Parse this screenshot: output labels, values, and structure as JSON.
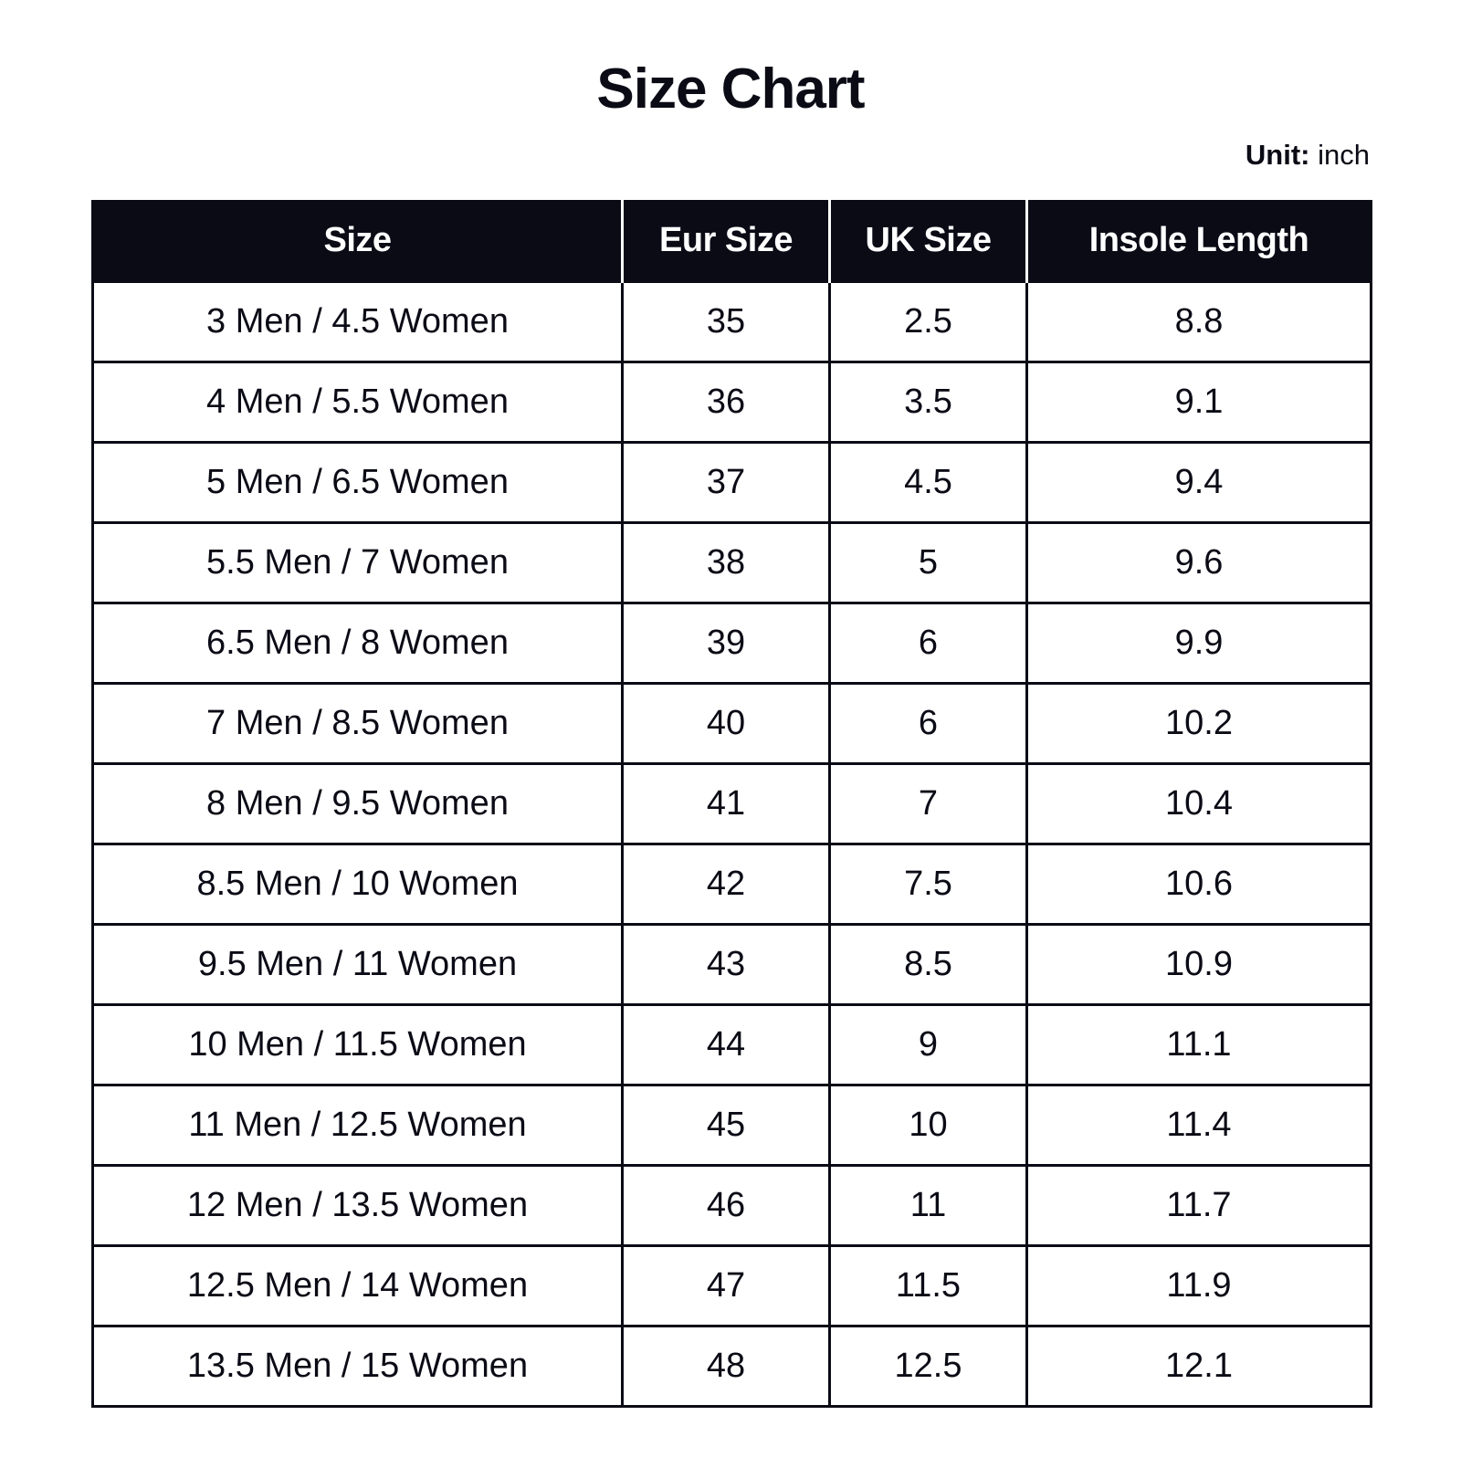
{
  "title": "Size Chart",
  "unit": {
    "label": "Unit:",
    "value": "inch"
  },
  "table": {
    "headers": [
      "Size",
      "Eur Size",
      "UK Size",
      "Insole Length"
    ],
    "rows": [
      [
        "3 Men / 4.5 Women",
        "35",
        "2.5",
        "8.8"
      ],
      [
        "4 Men / 5.5 Women",
        "36",
        "3.5",
        "9.1"
      ],
      [
        "5 Men / 6.5 Women",
        "37",
        "4.5",
        "9.4"
      ],
      [
        "5.5 Men / 7 Women",
        "38",
        "5",
        "9.6"
      ],
      [
        "6.5 Men / 8 Women",
        "39",
        "6",
        "9.9"
      ],
      [
        "7 Men / 8.5 Women",
        "40",
        "6",
        "10.2"
      ],
      [
        "8 Men / 9.5 Women",
        "41",
        "7",
        "10.4"
      ],
      [
        "8.5 Men / 10 Women",
        "42",
        "7.5",
        "10.6"
      ],
      [
        "9.5 Men / 11 Women",
        "43",
        "8.5",
        "10.9"
      ],
      [
        "10 Men / 11.5 Women",
        "44",
        "9",
        "11.1"
      ],
      [
        "11 Men / 12.5 Women",
        "45",
        "10",
        "11.4"
      ],
      [
        "12 Men / 13.5 Women",
        "46",
        "11",
        "11.7"
      ],
      [
        "12.5 Men / 14 Women",
        "47",
        "11.5",
        "11.9"
      ],
      [
        "13.5 Men / 15 Women",
        "48",
        "12.5",
        "12.1"
      ]
    ]
  }
}
